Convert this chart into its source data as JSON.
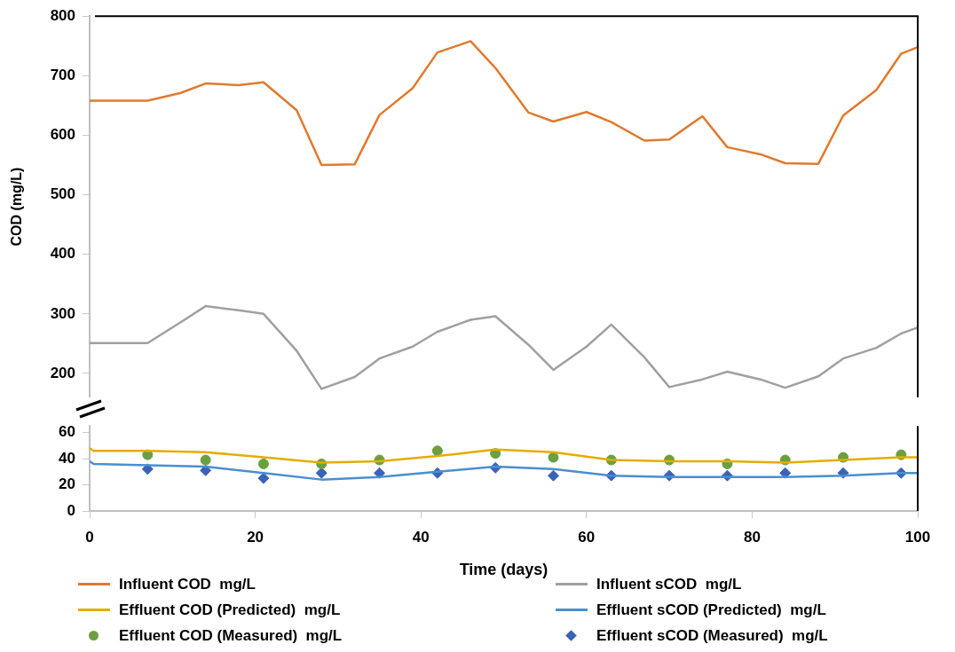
{
  "chart_data": [
    {
      "type": "line",
      "ylabel": "COD (mg/L)",
      "xlim": [
        0,
        100
      ],
      "ylim": [
        160,
        800
      ],
      "yticks": [
        200,
        300,
        400,
        500,
        600,
        700,
        800
      ],
      "tick_labels": "y",
      "grid": false,
      "legend": "bottom",
      "marker": "none",
      "line_style": "solid",
      "series": [
        {
          "name": "Influent COD  mg/L",
          "color": "#e07a2f",
          "x": [
            0,
            7,
            11,
            14,
            18,
            21,
            25,
            28,
            32,
            35,
            39,
            42,
            46,
            49,
            53,
            56,
            60,
            63,
            67,
            70,
            74,
            77,
            81,
            84,
            88,
            91,
            95,
            98,
            100
          ],
          "values": [
            658,
            658,
            671,
            687,
            684,
            689,
            642,
            550,
            551,
            634,
            679,
            739,
            758,
            713,
            638,
            623,
            639,
            622,
            591,
            593,
            632,
            580,
            568,
            553,
            552,
            633,
            676,
            737,
            748
          ]
        },
        {
          "name": "Influent sCOD  mg/L",
          "color": "#a0a0a0",
          "x": [
            0,
            7,
            11,
            14,
            18,
            21,
            25,
            28,
            32,
            35,
            39,
            42,
            46,
            49,
            53,
            56,
            60,
            63,
            67,
            70,
            74,
            77,
            81,
            84,
            88,
            91,
            95,
            98,
            100
          ],
          "values": [
            251,
            251,
            286,
            313,
            306,
            300,
            238,
            174,
            194,
            225,
            245,
            270,
            290,
            296,
            248,
            206,
            245,
            282,
            227,
            177,
            190,
            203,
            190,
            176,
            195,
            225,
            243,
            267,
            277
          ]
        }
      ]
    },
    {
      "type": "line",
      "xlabel": "Time (days)",
      "xlim": [
        0,
        100
      ],
      "xticks": [
        0,
        20,
        40,
        60,
        80,
        100
      ],
      "ylim": [
        0,
        65
      ],
      "yticks": [
        0,
        20,
        40,
        60
      ],
      "grid": false,
      "legend": "bottom",
      "marker": "none",
      "line_style": "solid",
      "series": [
        {
          "name": "Effluent COD (Predicted)  mg/L",
          "color": "#e6ac00",
          "x": [
            0,
            0.5,
            7,
            14,
            21,
            28,
            35,
            42,
            49,
            56,
            63,
            70,
            77,
            84,
            91,
            98,
            100
          ],
          "values": [
            48,
            46,
            46,
            45,
            41,
            37,
            38,
            42,
            47,
            45,
            39,
            38,
            38,
            37,
            39,
            41,
            41
          ]
        },
        {
          "name": "Effluent sCOD (Predicted)  mg/L",
          "color": "#4a8fd0",
          "x": [
            0,
            0.5,
            7,
            14,
            21,
            28,
            35,
            42,
            49,
            56,
            63,
            70,
            77,
            84,
            91,
            98,
            100
          ],
          "values": [
            38,
            36,
            35,
            34,
            29,
            24,
            26,
            30,
            34,
            32,
            27,
            26,
            26,
            26,
            27,
            29,
            29
          ]
        },
        {
          "name": "Effluent COD (Measured)  mg/L",
          "color": "#6aa040",
          "type": "scatter",
          "marker": "circle",
          "x": [
            7,
            14,
            21,
            28,
            35,
            42,
            49,
            56,
            63,
            70,
            77,
            84,
            91,
            98
          ],
          "values": [
            43,
            39,
            36,
            36,
            39,
            46,
            44,
            41,
            39,
            39,
            36,
            39,
            41,
            43
          ]
        },
        {
          "name": "Effluent sCOD (Measured)  mg/L",
          "color": "#3a63b8",
          "type": "scatter",
          "marker": "diamond",
          "x": [
            7,
            14,
            21,
            28,
            35,
            42,
            49,
            56,
            63,
            70,
            77,
            84,
            91,
            98
          ],
          "values": [
            32,
            31,
            25,
            29,
            29,
            29,
            33,
            27,
            27,
            27,
            27,
            29,
            29,
            29
          ]
        }
      ]
    }
  ]
}
